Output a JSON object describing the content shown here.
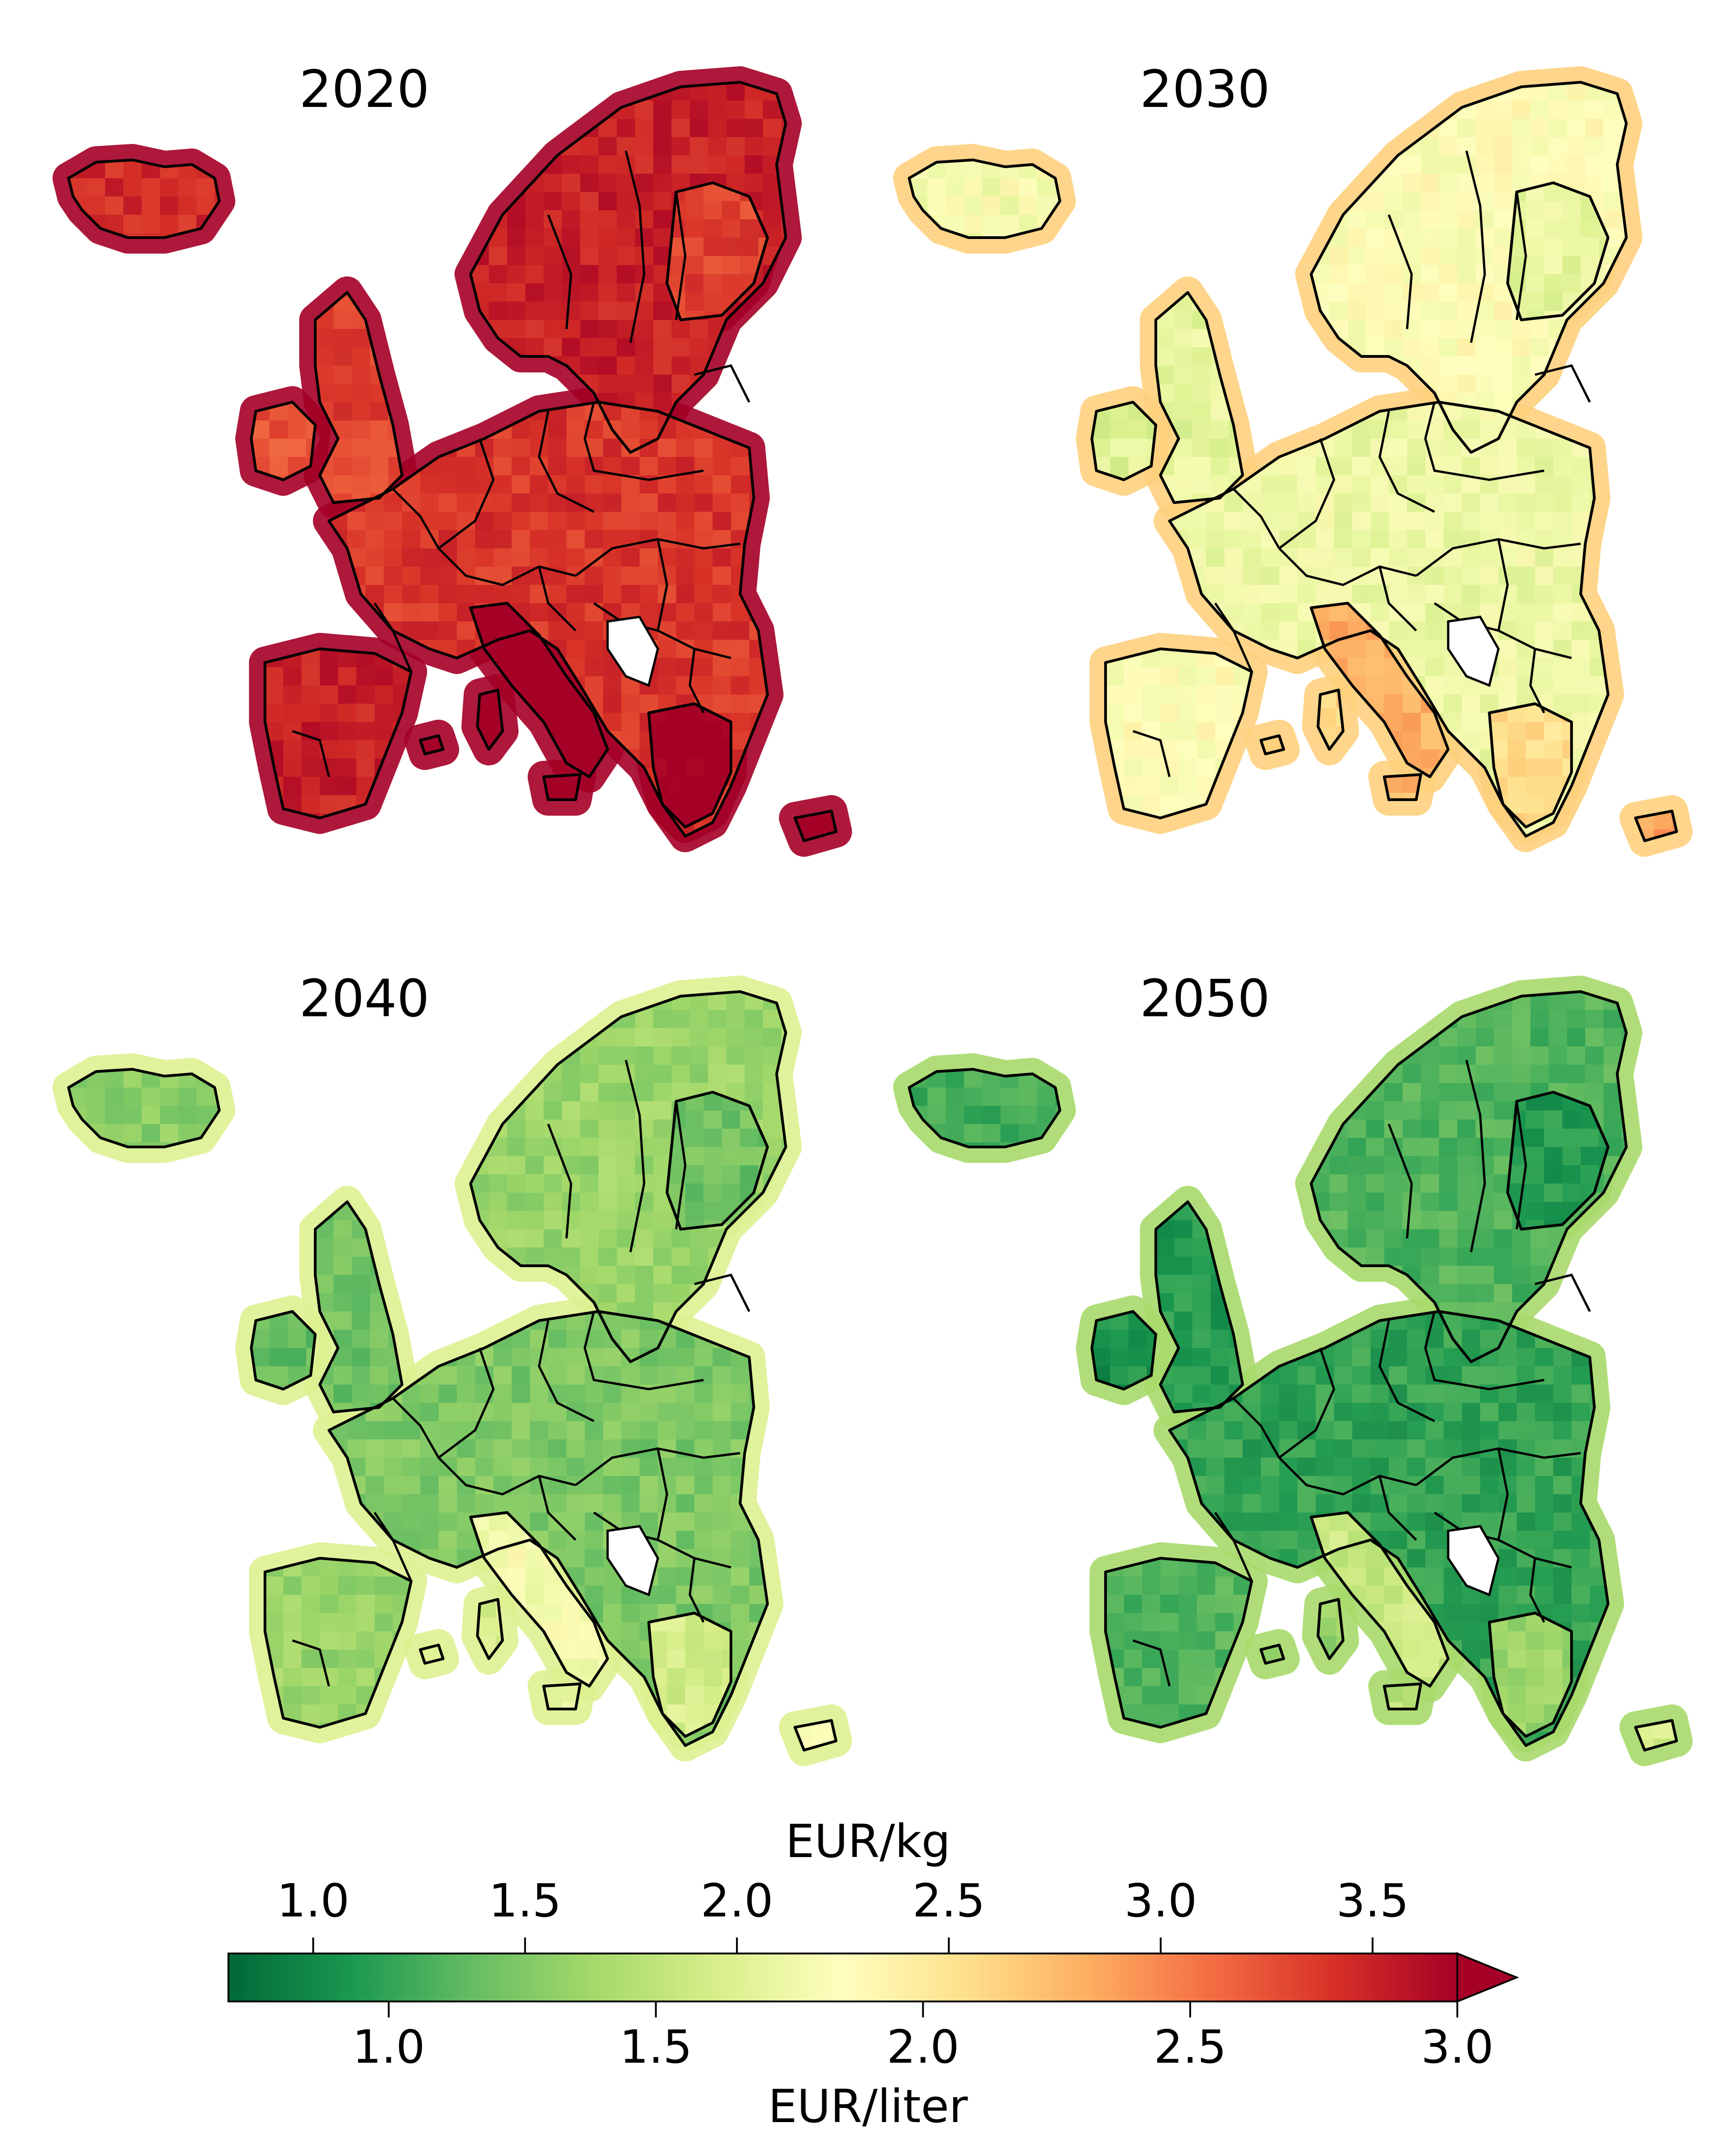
{
  "panels": [
    {
      "year": "2020",
      "overall_level": 2.75
    },
    {
      "year": "2030",
      "overall_level": 1.75
    },
    {
      "year": "2040",
      "overall_level": 1.25
    },
    {
      "year": "2050",
      "overall_level": 1.0
    }
  ],
  "colorbar": {
    "top_label": "EUR/kg",
    "bottom_label": "EUR/liter",
    "top_ticks": [
      "1.0",
      "1.5",
      "2.0",
      "2.5",
      "3.0",
      "3.5"
    ],
    "top_tick_values": [
      1.0,
      1.5,
      2.0,
      2.5,
      3.0,
      3.5
    ],
    "bottom_ticks": [
      "1.0",
      "1.5",
      "2.0",
      "2.5",
      "3.0"
    ],
    "bottom_tick_values": [
      1.0,
      1.5,
      2.0,
      2.5,
      3.0
    ],
    "kg_range": [
      0.8,
      3.7
    ],
    "liter_range": [
      0.7,
      3.0
    ],
    "extend": "max",
    "colormap": "RdYlGn_r",
    "colors": [
      "#006837",
      "#1a9850",
      "#66bd63",
      "#a6d96a",
      "#d9ef8b",
      "#ffffbf",
      "#fee08b",
      "#fdae61",
      "#f46d43",
      "#d73027",
      "#a50026"
    ]
  }
}
